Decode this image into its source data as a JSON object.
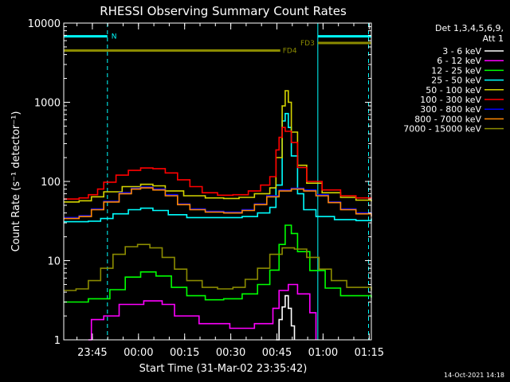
{
  "chart_data": {
    "type": "line",
    "title": "RHESSI Observing Summary Count Rates",
    "xlabel": "Start Time (31-Mar-02 23:35:42)",
    "ylabel": "Count Rate (s⁻¹ detector⁻¹)",
    "x_unit": "minutes after 23:35:42",
    "xlim": [
      0,
      100
    ],
    "ylim": [
      1,
      10000
    ],
    "yscale": "log",
    "grid": false,
    "legend_placement": "right",
    "x_ticks": [
      {
        "label": "23:45",
        "x": 9.3
      },
      {
        "label": "00:00",
        "x": 24.3
      },
      {
        "label": "00:15",
        "x": 39.3
      },
      {
        "label": "00:30",
        "x": 54.3
      },
      {
        "label": "00:45",
        "x": 69.3
      },
      {
        "label": "01:00",
        "x": 84.3
      },
      {
        "label": "01:15",
        "x": 99.3
      }
    ],
    "y_ticks": [
      {
        "label": "1",
        "y": 1
      },
      {
        "label": "10",
        "y": 10
      },
      {
        "label": "100",
        "y": 100
      },
      {
        "label": "1000",
        "y": 1000
      },
      {
        "label": "10000",
        "y": 10000
      }
    ],
    "legend_header": [
      "Det 1,3,4,5,6,9,",
      "Att 1"
    ],
    "series": [
      {
        "name": "3 - 6 keV",
        "color": "#ffffff",
        "points": [
          [
            69,
            1
          ],
          [
            70,
            1.8
          ],
          [
            71,
            2.6
          ],
          [
            72,
            3.6
          ],
          [
            73,
            2.5
          ],
          [
            74,
            1.5
          ],
          [
            75,
            1
          ]
        ]
      },
      {
        "name": "6 - 12 keV",
        "color": "#ff00ff",
        "points": [
          [
            8,
            1
          ],
          [
            9,
            1.8
          ],
          [
            13,
            2
          ],
          [
            18,
            2.8
          ],
          [
            26,
            3.1
          ],
          [
            32,
            2.8
          ],
          [
            36,
            2
          ],
          [
            44,
            1.6
          ],
          [
            54,
            1.4
          ],
          [
            62,
            1.6
          ],
          [
            68,
            2.5
          ],
          [
            70,
            4.2
          ],
          [
            73,
            5
          ],
          [
            76,
            3.8
          ],
          [
            80,
            2.2
          ],
          [
            82,
            1
          ]
        ]
      },
      {
        "name": "12 - 25 keV",
        "color": "#00ff00",
        "points": [
          [
            0,
            3
          ],
          [
            8,
            3.3
          ],
          [
            15,
            4.3
          ],
          [
            20,
            6.2
          ],
          [
            25,
            7.2
          ],
          [
            30,
            6.4
          ],
          [
            35,
            4.6
          ],
          [
            40,
            3.6
          ],
          [
            46,
            3.2
          ],
          [
            52,
            3.3
          ],
          [
            58,
            3.8
          ],
          [
            63,
            5
          ],
          [
            67,
            7.6
          ],
          [
            70,
            16
          ],
          [
            72,
            28
          ],
          [
            74,
            22
          ],
          [
            76,
            13
          ],
          [
            80,
            7.5
          ],
          [
            85,
            4.5
          ],
          [
            90,
            3.6
          ],
          [
            100,
            3.4
          ]
        ]
      },
      {
        "name": "25 - 50 keV",
        "color": "#00ffff",
        "points": [
          [
            0,
            31
          ],
          [
            8,
            31.5
          ],
          [
            12,
            34
          ],
          [
            16,
            39
          ],
          [
            21,
            44
          ],
          [
            25,
            46
          ],
          [
            29,
            43
          ],
          [
            34,
            38
          ],
          [
            40,
            35
          ],
          [
            46,
            35
          ],
          [
            52,
            35
          ],
          [
            58,
            36
          ],
          [
            63,
            40
          ],
          [
            67,
            47
          ],
          [
            69,
            90
          ],
          [
            71,
            580
          ],
          [
            72,
            720
          ],
          [
            73,
            480
          ],
          [
            74,
            210
          ],
          [
            76,
            70
          ],
          [
            78,
            44
          ],
          [
            82,
            36
          ],
          [
            88,
            33
          ],
          [
            95,
            32
          ],
          [
            100,
            34
          ]
        ]
      },
      {
        "name": "50 - 100 keV",
        "color": "#d4d400",
        "points": [
          [
            0,
            55
          ],
          [
            5,
            57
          ],
          [
            9,
            64
          ],
          [
            13,
            74
          ],
          [
            19,
            86
          ],
          [
            25,
            92
          ],
          [
            29,
            88
          ],
          [
            33,
            76
          ],
          [
            39,
            66
          ],
          [
            46,
            62
          ],
          [
            52,
            61
          ],
          [
            57,
            63
          ],
          [
            62,
            70
          ],
          [
            67,
            83
          ],
          [
            69,
            200
          ],
          [
            71,
            900
          ],
          [
            72,
            1400
          ],
          [
            73,
            1000
          ],
          [
            74,
            420
          ],
          [
            76,
            160
          ],
          [
            79,
            95
          ],
          [
            84,
            72
          ],
          [
            90,
            63
          ],
          [
            95,
            58
          ],
          [
            100,
            56
          ]
        ]
      },
      {
        "name": "100 - 300 keV",
        "color": "#ff0000",
        "points": [
          [
            0,
            60
          ],
          [
            5,
            62
          ],
          [
            8,
            68
          ],
          [
            11,
            80
          ],
          [
            13,
            98
          ],
          [
            17,
            120
          ],
          [
            21,
            138
          ],
          [
            25,
            148
          ],
          [
            29,
            145
          ],
          [
            33,
            128
          ],
          [
            37,
            105
          ],
          [
            41,
            86
          ],
          [
            45,
            72
          ],
          [
            50,
            67
          ],
          [
            55,
            68
          ],
          [
            60,
            76
          ],
          [
            64,
            90
          ],
          [
            67,
            115
          ],
          [
            69,
            250
          ],
          [
            70,
            360
          ],
          [
            71,
            480
          ],
          [
            72,
            430
          ],
          [
            74,
            310
          ],
          [
            76,
            150
          ],
          [
            79,
            100
          ],
          [
            84,
            78
          ],
          [
            90,
            66
          ],
          [
            95,
            62
          ],
          [
            100,
            60
          ]
        ]
      },
      {
        "name": "300 - 800 keV",
        "color": "#0000ff",
        "points": [
          [
            0,
            35
          ],
          [
            5,
            37
          ],
          [
            9,
            45
          ],
          [
            13,
            56
          ],
          [
            18,
            72
          ],
          [
            22,
            82
          ],
          [
            25,
            85
          ],
          [
            29,
            80
          ],
          [
            33,
            68
          ],
          [
            37,
            52
          ],
          [
            41,
            45
          ],
          [
            46,
            42
          ],
          [
            52,
            41
          ],
          [
            58,
            44
          ],
          [
            62,
            52
          ],
          [
            66,
            66
          ],
          [
            70,
            78
          ],
          [
            74,
            82
          ],
          [
            78,
            78
          ],
          [
            82,
            68
          ],
          [
            86,
            55
          ],
          [
            90,
            45
          ],
          [
            95,
            40
          ],
          [
            100,
            37
          ]
        ]
      },
      {
        "name": "800 - 7000 keV",
        "color": "#ff8800",
        "points": [
          [
            0,
            34
          ],
          [
            5,
            36
          ],
          [
            9,
            44
          ],
          [
            13,
            55
          ],
          [
            18,
            70
          ],
          [
            22,
            80
          ],
          [
            25,
            83
          ],
          [
            29,
            78
          ],
          [
            33,
            66
          ],
          [
            37,
            51
          ],
          [
            41,
            44
          ],
          [
            46,
            41
          ],
          [
            52,
            40
          ],
          [
            58,
            43
          ],
          [
            62,
            51
          ],
          [
            66,
            64
          ],
          [
            70,
            76
          ],
          [
            74,
            80
          ],
          [
            78,
            76
          ],
          [
            82,
            66
          ],
          [
            86,
            54
          ],
          [
            90,
            44
          ],
          [
            95,
            39
          ],
          [
            100,
            36
          ]
        ]
      },
      {
        "name": "7000 - 15000 keV",
        "color": "#8b8b00",
        "points": [
          [
            0,
            4.2
          ],
          [
            4,
            4.4
          ],
          [
            8,
            5.6
          ],
          [
            12,
            8
          ],
          [
            16,
            12
          ],
          [
            20,
            15
          ],
          [
            24,
            16
          ],
          [
            28,
            14.5
          ],
          [
            32,
            11
          ],
          [
            36,
            7.8
          ],
          [
            40,
            5.6
          ],
          [
            45,
            4.6
          ],
          [
            50,
            4.4
          ],
          [
            55,
            4.6
          ],
          [
            59,
            5.8
          ],
          [
            63,
            8
          ],
          [
            67,
            12
          ],
          [
            71,
            14.5
          ],
          [
            75,
            14
          ],
          [
            79,
            11
          ],
          [
            83,
            7.8
          ],
          [
            87,
            5.6
          ],
          [
            92,
            4.6
          ],
          [
            100,
            4.2
          ]
        ]
      }
    ],
    "annotations": [
      {
        "id": "saa_start",
        "type": "vline",
        "x": 0,
        "color": "#00ffff",
        "style": "solid"
      },
      {
        "id": "n_start",
        "type": "vline",
        "x": 14.2,
        "color": "#00ffff",
        "style": "dashed"
      },
      {
        "id": "fd3_start",
        "type": "vline",
        "x": 82.6,
        "color": "#00ffff",
        "style": "solid"
      },
      {
        "id": "fd4_end",
        "type": "vline",
        "x": 99.1,
        "color": "#00ffff",
        "style": "dashed"
      },
      {
        "id": "night",
        "type": "hbar",
        "label": "N",
        "color": "#00ffff",
        "x": [
          0,
          14.2
        ],
        "y": 6800
      },
      {
        "id": "night2",
        "type": "hbar",
        "label": "",
        "color": "#00ffff",
        "x": [
          82.6,
          100
        ],
        "y": 6800
      },
      {
        "id": "fd3",
        "type": "hbar",
        "label": "FD3",
        "color": "#8b8b00",
        "x": [
          82.6,
          100
        ],
        "y": 5600
      },
      {
        "id": "fd4",
        "type": "hbar",
        "label": "FD4",
        "color": "#8b8b00",
        "x": [
          0,
          70.4
        ],
        "y": 4500
      }
    ]
  },
  "timestamp": "14-Oct-2021 14:18"
}
